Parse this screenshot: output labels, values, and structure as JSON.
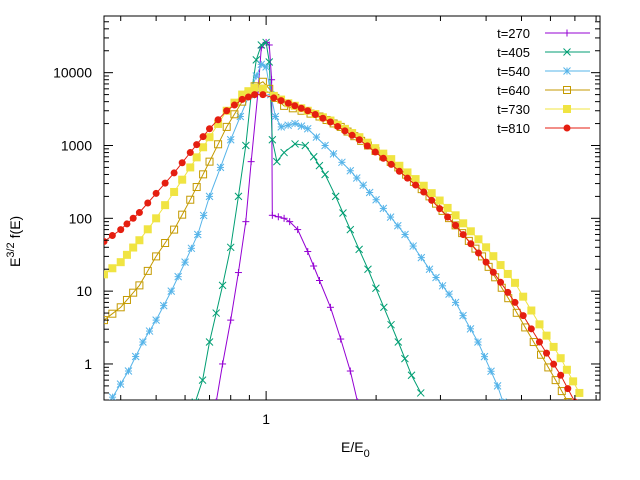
{
  "chart_data": {
    "type": "line",
    "title": "",
    "xlabel": {
      "main": "E/E",
      "sub": "0"
    },
    "ylabel": {
      "prefix": "E",
      "sup": "3/2",
      "suffix": "f(E)"
    },
    "xscale": "log",
    "yscale": "log",
    "xlim": [
      0.36,
      8.2
    ],
    "ylim": [
      0.32,
      60000
    ],
    "x_ticks": [
      {
        "value": 1,
        "label": "1"
      }
    ],
    "y_ticks": [
      {
        "value": 1,
        "label": "1"
      },
      {
        "value": 10,
        "label": "10"
      },
      {
        "value": 100,
        "label": "100"
      },
      {
        "value": 1000,
        "label": "1000"
      },
      {
        "value": 10000,
        "label": "10000"
      }
    ],
    "grid": false,
    "legend_position": "top-right",
    "series": [
      {
        "name": "t=270",
        "color": "#9400d3",
        "marker": "plus",
        "points": [
          [
            0.73,
            0.3
          ],
          [
            0.76,
            1.0
          ],
          [
            0.8,
            4.0
          ],
          [
            0.84,
            18
          ],
          [
            0.88,
            90
          ],
          [
            0.91,
            600
          ],
          [
            0.95,
            5500
          ],
          [
            0.97,
            22000
          ],
          [
            1.0,
            26000
          ],
          [
            1.02,
            24000
          ],
          [
            1.035,
            8000
          ],
          [
            1.04,
            110
          ],
          [
            1.08,
            105
          ],
          [
            1.12,
            100
          ],
          [
            1.16,
            90
          ],
          [
            1.22,
            70
          ],
          [
            1.3,
            35
          ],
          [
            1.4,
            14
          ],
          [
            1.5,
            6
          ],
          [
            1.6,
            2.2
          ],
          [
            1.7,
            0.8
          ],
          [
            1.78,
            0.3
          ]
        ]
      },
      {
        "name": "t=405",
        "color": "#009e73",
        "marker": "x",
        "points": [
          [
            0.64,
            0.3
          ],
          [
            0.67,
            0.6
          ],
          [
            0.7,
            2.0
          ],
          [
            0.73,
            5
          ],
          [
            0.76,
            12
          ],
          [
            0.8,
            40
          ],
          [
            0.84,
            200
          ],
          [
            0.88,
            1000
          ],
          [
            0.91,
            5000
          ],
          [
            0.94,
            15000
          ],
          [
            0.97,
            24000
          ],
          [
            1.0,
            26000
          ],
          [
            1.02,
            14000
          ],
          [
            1.04,
            1200
          ],
          [
            1.07,
            600
          ],
          [
            1.12,
            800
          ],
          [
            1.2,
            1050
          ],
          [
            1.28,
            1000
          ],
          [
            1.35,
            700
          ],
          [
            1.45,
            400
          ],
          [
            1.55,
            200
          ],
          [
            1.7,
            70
          ],
          [
            1.9,
            20
          ],
          [
            2.1,
            6
          ],
          [
            2.3,
            2
          ],
          [
            2.5,
            0.7
          ],
          [
            2.65,
            0.4
          ]
        ]
      },
      {
        "name": "t=540",
        "color": "#56b4e9",
        "marker": "star",
        "points": [
          [
            0.38,
            0.35
          ],
          [
            0.42,
            0.8
          ],
          [
            0.46,
            2
          ],
          [
            0.5,
            4
          ],
          [
            0.55,
            10
          ],
          [
            0.6,
            25
          ],
          [
            0.65,
            60
          ],
          [
            0.7,
            200
          ],
          [
            0.75,
            500
          ],
          [
            0.8,
            1200
          ],
          [
            0.85,
            2500
          ],
          [
            0.9,
            5000
          ],
          [
            0.94,
            9000
          ],
          [
            0.97,
            13000
          ],
          [
            1.0,
            12000
          ],
          [
            1.03,
            5000
          ],
          [
            1.06,
            2500
          ],
          [
            1.1,
            1800
          ],
          [
            1.2,
            2000
          ],
          [
            1.3,
            1700
          ],
          [
            1.45,
            1000
          ],
          [
            1.7,
            450
          ],
          [
            2.0,
            180
          ],
          [
            2.4,
            60
          ],
          [
            2.8,
            20
          ],
          [
            3.3,
            7
          ],
          [
            3.8,
            2
          ],
          [
            4.3,
            0.5
          ],
          [
            4.45,
            0.3
          ]
        ]
      },
      {
        "name": "t=640",
        "color": "#c49a00",
        "marker": "square-open",
        "points": [
          [
            0.36,
            4
          ],
          [
            0.4,
            6
          ],
          [
            0.45,
            12
          ],
          [
            0.5,
            30
          ],
          [
            0.56,
            70
          ],
          [
            0.62,
            180
          ],
          [
            0.7,
            600
          ],
          [
            0.78,
            1800
          ],
          [
            0.86,
            4000
          ],
          [
            0.93,
            6500
          ],
          [
            0.98,
            7500
          ],
          [
            1.02,
            6000
          ],
          [
            1.06,
            4500
          ],
          [
            1.12,
            3500
          ],
          [
            1.25,
            3000
          ],
          [
            1.4,
            2500
          ],
          [
            1.6,
            1800
          ],
          [
            1.9,
            1000
          ],
          [
            2.3,
            500
          ],
          [
            2.8,
            200
          ],
          [
            3.3,
            80
          ],
          [
            3.9,
            30
          ],
          [
            4.6,
            8
          ],
          [
            5.4,
            2
          ],
          [
            6.2,
            0.6
          ],
          [
            6.7,
            0.3
          ]
        ]
      },
      {
        "name": "t=730",
        "color": "#f0e442",
        "marker": "square-filled",
        "points": [
          [
            0.36,
            17
          ],
          [
            0.4,
            25
          ],
          [
            0.45,
            50
          ],
          [
            0.5,
            100
          ],
          [
            0.56,
            230
          ],
          [
            0.62,
            500
          ],
          [
            0.7,
            1300
          ],
          [
            0.78,
            3000
          ],
          [
            0.86,
            5000
          ],
          [
            0.93,
            6200
          ],
          [
            0.98,
            6000
          ],
          [
            1.05,
            4800
          ],
          [
            1.15,
            3800
          ],
          [
            1.3,
            3000
          ],
          [
            1.5,
            2200
          ],
          [
            1.8,
            1300
          ],
          [
            2.2,
            650
          ],
          [
            2.7,
            280
          ],
          [
            3.3,
            110
          ],
          [
            4.0,
            40
          ],
          [
            4.8,
            13
          ],
          [
            5.6,
            3.5
          ],
          [
            6.4,
            1.2
          ],
          [
            7.2,
            0.4
          ]
        ]
      },
      {
        "name": "t=810",
        "color": "#e51e10",
        "marker": "circle-filled",
        "points": [
          [
            0.36,
            48
          ],
          [
            0.4,
            70
          ],
          [
            0.45,
            120
          ],
          [
            0.5,
            220
          ],
          [
            0.56,
            420
          ],
          [
            0.62,
            800
          ],
          [
            0.7,
            1700
          ],
          [
            0.78,
            3000
          ],
          [
            0.86,
            4300
          ],
          [
            0.93,
            5000
          ],
          [
            0.98,
            5000
          ],
          [
            1.05,
            4500
          ],
          [
            1.15,
            3800
          ],
          [
            1.3,
            3000
          ],
          [
            1.5,
            2100
          ],
          [
            1.8,
            1200
          ],
          [
            2.2,
            550
          ],
          [
            2.7,
            230
          ],
          [
            3.3,
            80
          ],
          [
            4.0,
            25
          ],
          [
            4.8,
            7
          ],
          [
            5.6,
            2
          ],
          [
            6.4,
            0.7
          ],
          [
            7.0,
            0.3
          ]
        ]
      }
    ]
  }
}
